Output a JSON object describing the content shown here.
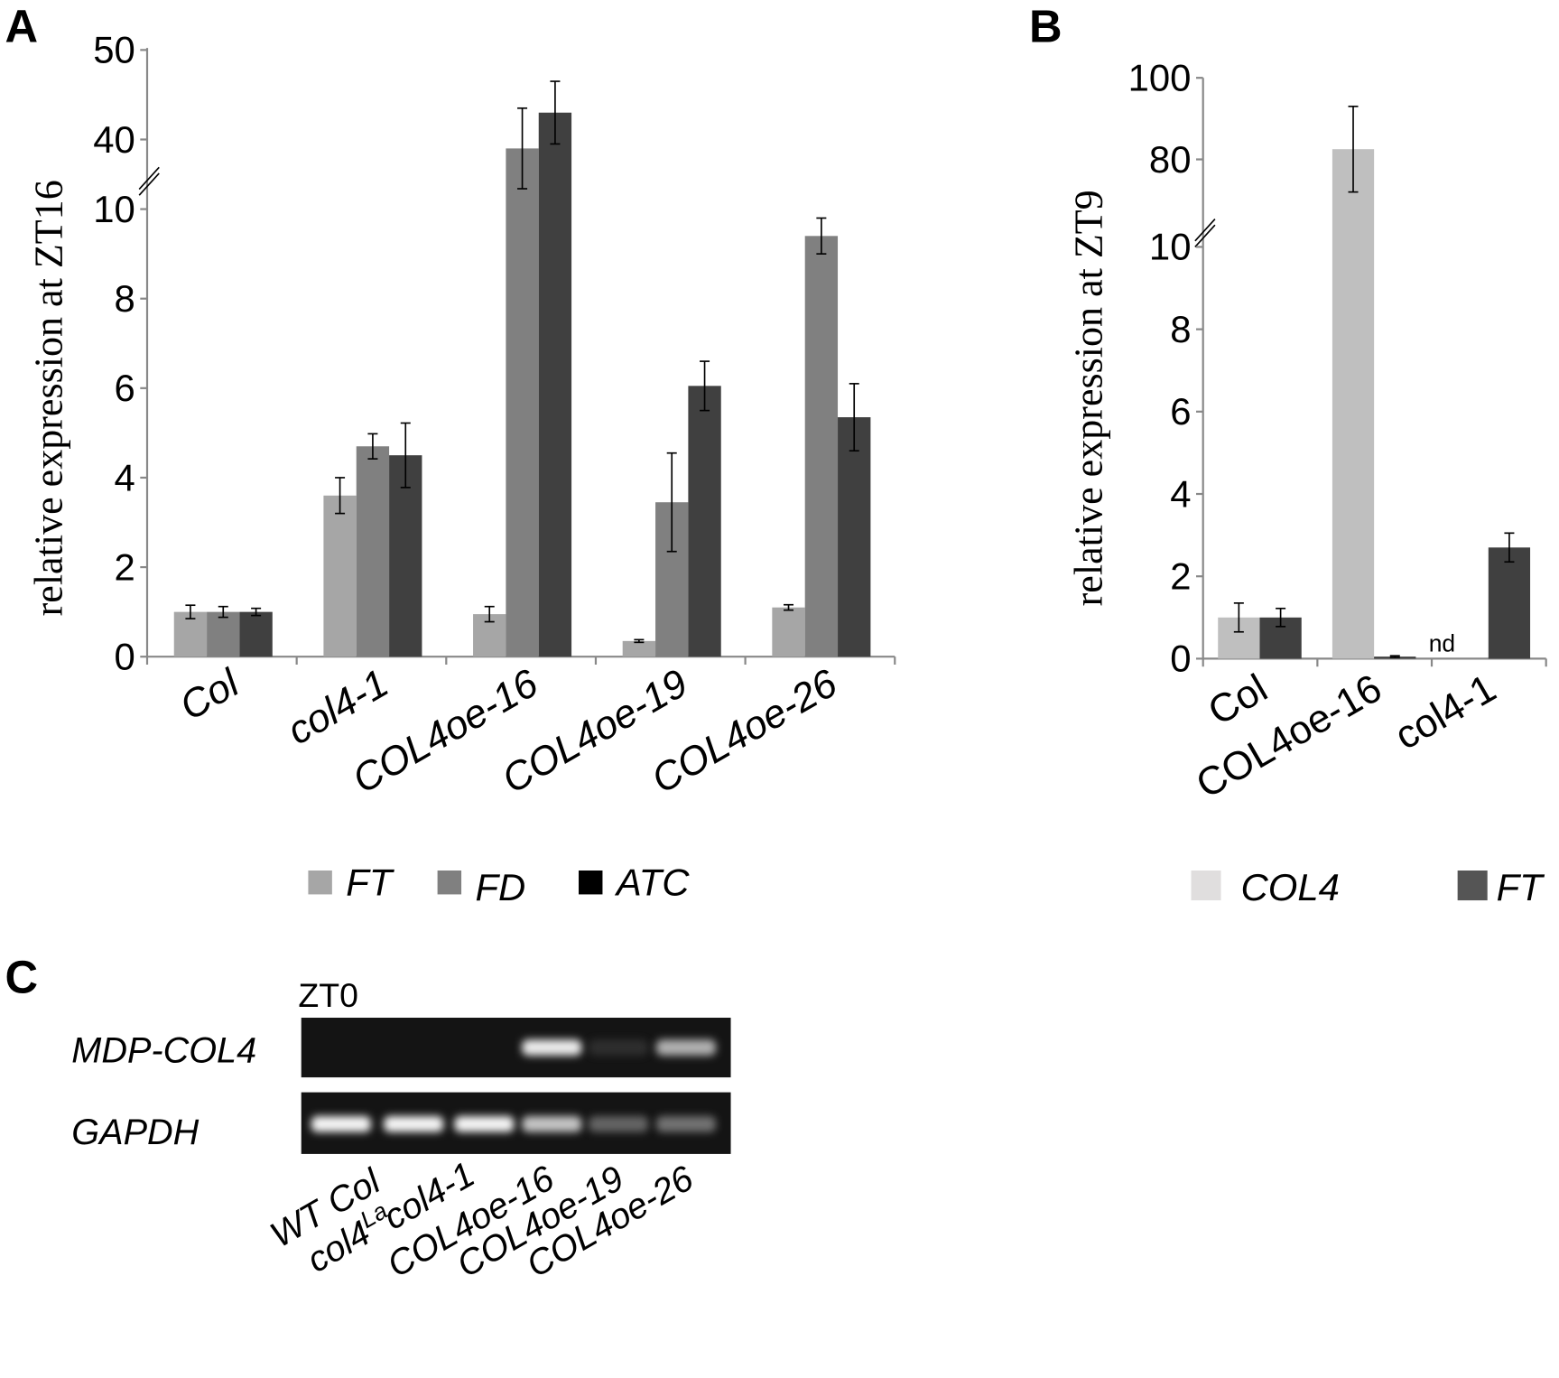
{
  "panels": {
    "a": "A",
    "b": "B",
    "c": "C"
  },
  "chart_data": [
    {
      "type": "bar",
      "panel": "A",
      "ylabel": "relative expression at ZT16",
      "categories": [
        "Col",
        "col4-1",
        "COL4oe-16",
        "COL4oe-19",
        "COL4oe-26"
      ],
      "y_axis_break": [
        10,
        38
      ],
      "yticks": [
        "0",
        "2",
        "4",
        "6",
        "8",
        "10",
        "40",
        "50"
      ],
      "ylim": [
        0,
        50
      ],
      "legend_position": "bottom",
      "series": [
        {
          "name": "FT",
          "color": "#a6a6a6",
          "values": [
            1.0,
            3.6,
            0.95,
            0.35,
            1.1
          ],
          "errors": [
            0.15,
            0.4,
            0.17,
            0.03,
            0.06
          ]
        },
        {
          "name": "FD",
          "color": "#808080",
          "values": [
            1.0,
            4.7,
            39,
            3.45,
            9.4
          ],
          "errors": [
            0.12,
            0.28,
            4.5,
            1.1,
            0.4
          ]
        },
        {
          "name": "ATC",
          "color": "#404040",
          "values": [
            1.0,
            4.5,
            43,
            6.05,
            5.35
          ],
          "errors": [
            0.08,
            0.72,
            3.5,
            0.55,
            0.75
          ]
        }
      ],
      "legend_swatch_colors": [
        "#a6a6a6",
        "#808080",
        "#000000"
      ]
    },
    {
      "type": "bar",
      "panel": "B",
      "ylabel": "relative expression at ZT9",
      "categories": [
        "Col",
        "COL4oe-16",
        "col4-1"
      ],
      "y_axis_break": [
        10,
        78
      ],
      "yticks": [
        "0",
        "2",
        "4",
        "6",
        "8",
        "10",
        "80",
        "100"
      ],
      "ylim": [
        0,
        100
      ],
      "legend_position": "bottom",
      "series": [
        {
          "name": "COL4",
          "color": "#bfbfbf",
          "values": [
            1.0,
            82.5,
            null
          ],
          "errors": [
            0.35,
            10.5,
            null
          ]
        },
        {
          "name": "FT",
          "color": "#404040",
          "values": [
            1.0,
            0.05,
            2.7
          ],
          "errors": [
            0.22,
            0.02,
            0.35
          ]
        }
      ],
      "annotations": [
        "nd"
      ],
      "legend_swatch_colors": [
        "#e0dede",
        "#555555"
      ]
    }
  ],
  "gel": {
    "timepoint": "ZT0",
    "rows": [
      "MDP-COL4",
      "GAPDH"
    ],
    "lanes": [
      {
        "label": "WT Col"
      },
      {
        "label": "col4",
        "sup": "La"
      },
      {
        "label": "col4-1"
      },
      {
        "label": "COL4oe-16"
      },
      {
        "label": "COL4oe-19"
      },
      {
        "label": "COL4oe-26"
      }
    ],
    "band_intensity": {
      "MDP-COL4": [
        0,
        0,
        0,
        0.9,
        0.08,
        0.6
      ],
      "GAPDH": [
        0.95,
        0.95,
        0.95,
        0.7,
        0.35,
        0.4
      ]
    }
  }
}
